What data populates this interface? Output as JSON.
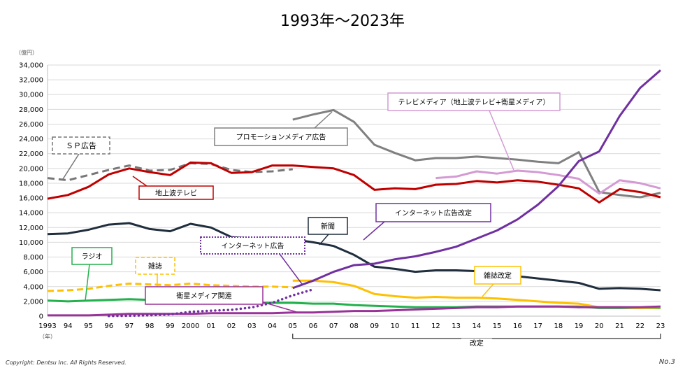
{
  "title": "1993年～2023年",
  "footer": {
    "copyright": "Copyright: Dentsu Inc. All Rights Reserved.",
    "page": "No.3"
  },
  "colors": {
    "sp": "#777777",
    "terrestrial_tv": "#c00000",
    "promotion": "#808080",
    "tv_media": "#d49ad4",
    "internet_new": "#7030a0",
    "internet_old": "#7030a0",
    "newspaper": "#1f2d3d",
    "magazine_old": "#ffc000",
    "magazine_new": "#ffc000",
    "radio": "#22b14c",
    "satellite": "#993399"
  },
  "chart_data": {
    "type": "line",
    "title": "1993年～2023年",
    "ylabel": "（億円）",
    "xlabel": "（年）",
    "ylim": [
      0,
      34000
    ],
    "yticks": [
      "0",
      "2,000",
      "4,000",
      "6,000",
      "8,000",
      "10,000",
      "12,000",
      "14,000",
      "16,000",
      "18,000",
      "20,000",
      "22,000",
      "24,000",
      "26,000",
      "28,000",
      "30,000",
      "32,000",
      "34,000"
    ],
    "x_labels": [
      "1993",
      "94",
      "95",
      "96",
      "97",
      "98",
      "99",
      "2000",
      "01",
      "02",
      "03",
      "04",
      "05",
      "06",
      "07",
      "08",
      "09",
      "10",
      "11",
      "12",
      "13",
      "14",
      "15",
      "16",
      "17",
      "18",
      "19",
      "20",
      "21",
      "22",
      "23"
    ],
    "revision_label": "改定",
    "revision_range": [
      "05",
      "23"
    ],
    "grid": true,
    "series": [
      {
        "key": "sp",
        "name": "ＳＰ広告",
        "style": "dashed",
        "x": [
          1993,
          1994,
          1995,
          1996,
          1997,
          1998,
          1999,
          2000,
          2001,
          2002,
          2003,
          2004,
          2005
        ],
        "values": [
          18700,
          18400,
          19100,
          19800,
          20400,
          19700,
          19800,
          20700,
          20600,
          19800,
          19500,
          19600,
          19900
        ]
      },
      {
        "key": "terrestrial_tv",
        "name": "地上波テレビ",
        "style": "solid",
        "x": [
          1993,
          1994,
          1995,
          1996,
          1997,
          1998,
          1999,
          2000,
          2001,
          2002,
          2003,
          2004,
          2005,
          2006,
          2007,
          2008,
          2009,
          2010,
          2011,
          2012,
          2013,
          2014,
          2015,
          2016,
          2017,
          2018,
          2019,
          2020,
          2021,
          2022,
          2023
        ],
        "values": [
          15900,
          16400,
          17500,
          19200,
          20000,
          19500,
          19100,
          20800,
          20700,
          19400,
          19500,
          20400,
          20400,
          20200,
          20000,
          19100,
          17100,
          17300,
          17200,
          17800,
          17900,
          18300,
          18100,
          18400,
          18200,
          17800,
          17300,
          15400,
          17200,
          16800,
          16100
        ]
      },
      {
        "key": "promotion",
        "name": "プロモーションメディア広告",
        "style": "solid",
        "x": [
          2005,
          2006,
          2007,
          2008,
          2009,
          2010,
          2011,
          2012,
          2013,
          2014,
          2015,
          2016,
          2017,
          2018,
          2019,
          2020,
          2021,
          2022,
          2023
        ],
        "values": [
          26600,
          27300,
          27900,
          26300,
          23200,
          22100,
          21100,
          21400,
          21400,
          21600,
          21400,
          21200,
          20900,
          20700,
          22200,
          16800,
          16400,
          16100,
          16700
        ]
      },
      {
        "key": "tv_media",
        "name": "テレビメディア（地上波テレビ+衛星メディア）",
        "style": "solid",
        "x": [
          2012,
          2013,
          2014,
          2015,
          2016,
          2017,
          2018,
          2019,
          2020,
          2021,
          2022,
          2023
        ],
        "values": [
          18700,
          18900,
          19600,
          19300,
          19700,
          19500,
          19100,
          18600,
          16600,
          18400,
          18000,
          17300
        ]
      },
      {
        "key": "internet_new",
        "name": "インターネット広告改定",
        "style": "solid",
        "x": [
          2005,
          2006,
          2007,
          2008,
          2009,
          2010,
          2011,
          2012,
          2013,
          2014,
          2015,
          2016,
          2017,
          2018,
          2019,
          2020,
          2021,
          2022,
          2023
        ],
        "values": [
          3800,
          4800,
          6000,
          6900,
          7100,
          7700,
          8100,
          8700,
          9400,
          10500,
          11600,
          13100,
          15100,
          17600,
          21000,
          22300,
          27100,
          30900,
          33300
        ]
      },
      {
        "key": "internet_old",
        "name": "インターネット広告",
        "style": "dotted",
        "x": [
          1996,
          1997,
          1998,
          1999,
          2000,
          2001,
          2002,
          2003,
          2004,
          2005,
          2006
        ],
        "values": [
          20,
          60,
          110,
          240,
          590,
          740,
          850,
          1180,
          1810,
          2810,
          3630
        ]
      },
      {
        "key": "newspaper",
        "name": "新聞",
        "style": "solid",
        "x": [
          1993,
          1994,
          1995,
          1996,
          1997,
          1998,
          1999,
          2000,
          2001,
          2002,
          2003,
          2004,
          2005,
          2006,
          2007,
          2008,
          2009,
          2010,
          2011,
          2012,
          2013,
          2014,
          2015,
          2016,
          2017,
          2018,
          2019,
          2020,
          2021,
          2022,
          2023
        ],
        "values": [
          11100,
          11200,
          11700,
          12400,
          12600,
          11800,
          11500,
          12500,
          12000,
          10700,
          10500,
          10600,
          10400,
          10000,
          9500,
          8300,
          6700,
          6400,
          6000,
          6200,
          6200,
          6100,
          5700,
          5400,
          5100,
          4800,
          4500,
          3700,
          3800,
          3700,
          3500
        ]
      },
      {
        "key": "magazine_old",
        "name": "雑誌",
        "style": "dashed",
        "x": [
          1993,
          1994,
          1995,
          1996,
          1997,
          1998,
          1999,
          2000,
          2001,
          2002,
          2003,
          2004,
          2005
        ],
        "values": [
          3400,
          3500,
          3700,
          4100,
          4400,
          4300,
          4200,
          4400,
          4200,
          4100,
          4000,
          4000,
          3900
        ]
      },
      {
        "key": "magazine_new",
        "name": "雑誌改定",
        "style": "solid",
        "x": [
          2005,
          2006,
          2007,
          2008,
          2009,
          2010,
          2011,
          2012,
          2013,
          2014,
          2015,
          2016,
          2017,
          2018,
          2019,
          2020,
          2021,
          2022,
          2023
        ],
        "values": [
          4800,
          4800,
          4600,
          4100,
          3000,
          2700,
          2500,
          2600,
          2500,
          2500,
          2400,
          2200,
          2000,
          1800,
          1700,
          1200,
          1200,
          1100,
          1200
        ]
      },
      {
        "key": "radio",
        "name": "ラジオ",
        "style": "solid",
        "x": [
          1993,
          1994,
          1995,
          1996,
          1997,
          1998,
          1999,
          2000,
          2001,
          2002,
          2003,
          2004,
          2005,
          2006,
          2007,
          2008,
          2009,
          2010,
          2011,
          2012,
          2013,
          2014,
          2015,
          2016,
          2017,
          2018,
          2019,
          2020,
          2021,
          2022,
          2023
        ],
        "values": [
          2100,
          2000,
          2100,
          2200,
          2300,
          2200,
          2000,
          2100,
          2000,
          1800,
          1800,
          1800,
          1800,
          1700,
          1700,
          1500,
          1400,
          1300,
          1200,
          1200,
          1200,
          1300,
          1300,
          1300,
          1300,
          1300,
          1300,
          1100,
          1100,
          1100,
          1100
        ]
      },
      {
        "key": "satellite",
        "name": "衛星メディア関連",
        "style": "solid",
        "x": [
          1993,
          1994,
          1995,
          1996,
          1997,
          1998,
          1999,
          2000,
          2001,
          2002,
          2003,
          2004,
          2005,
          2006,
          2007,
          2008,
          2009,
          2010,
          2011,
          2012,
          2013,
          2014,
          2015,
          2016,
          2017,
          2018,
          2019,
          2020,
          2021,
          2022,
          2023
        ],
        "values": [
          100,
          100,
          100,
          200,
          300,
          300,
          300,
          300,
          400,
          400,
          400,
          400,
          500,
          500,
          600,
          700,
          700,
          800,
          900,
          1000,
          1100,
          1200,
          1200,
          1300,
          1300,
          1300,
          1200,
          1200,
          1200,
          1200,
          1300
        ]
      }
    ]
  }
}
